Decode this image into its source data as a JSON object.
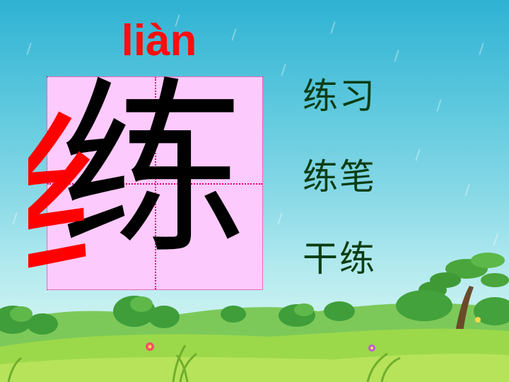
{
  "pinyin": "liàn",
  "character": "练",
  "radical": "纟",
  "words": [
    "练习",
    "练笔",
    "干练"
  ],
  "colors": {
    "pinyin": "#ff0d0d",
    "radical": "#ff0000",
    "character": "#000000",
    "grid_background": "#fccafc",
    "grid_lines": "#e8007a",
    "words": "#0b3d12"
  }
}
